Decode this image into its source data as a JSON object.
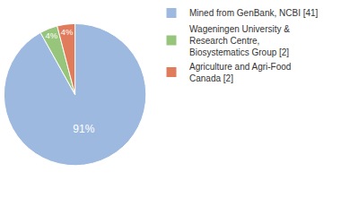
{
  "chart_data": {
    "type": "pie",
    "categories": [
      "Mined from GenBank, NCBI [41]",
      "Wageningen University & Research Centre, Biosystematics Group [2]",
      "Agriculture and Agri-Food Canada [2]"
    ],
    "values": [
      91,
      4,
      4
    ],
    "value_labels": [
      "91%",
      "4%",
      "4%"
    ],
    "colors": [
      "#9db9df",
      "#98c57c",
      "#e07b5c"
    ],
    "data_labels": true,
    "legend": "top right"
  }
}
